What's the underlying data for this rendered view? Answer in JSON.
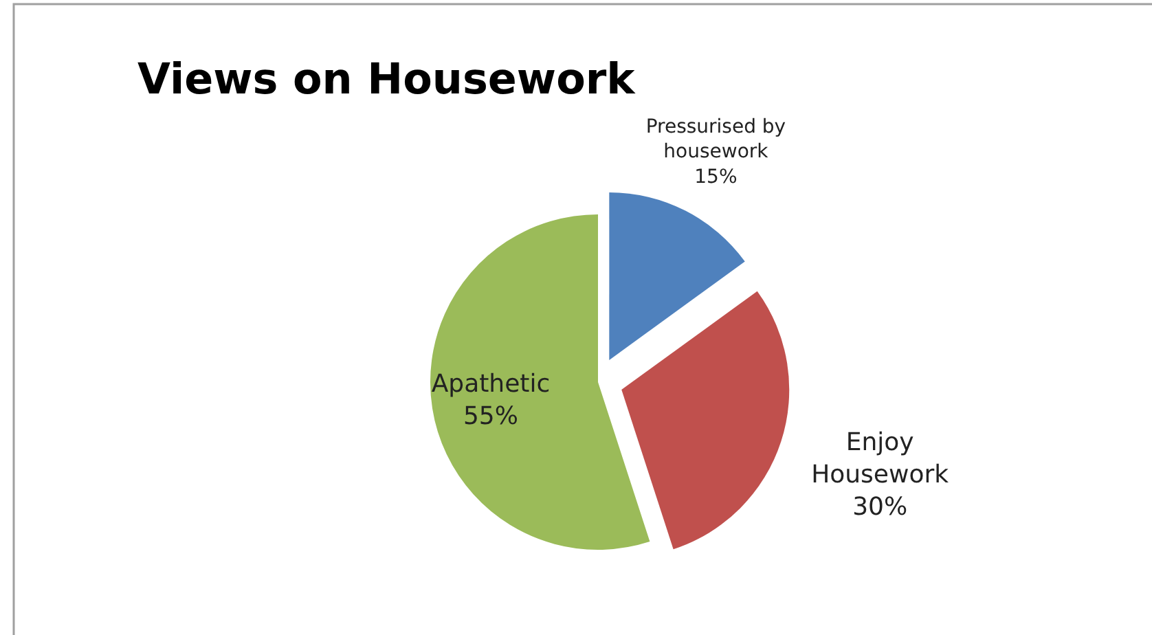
{
  "chart_data": {
    "type": "pie",
    "title": "Views on Housework",
    "categories": [
      "Pressurised by housework",
      "Enjoy Housework",
      "Apathetic"
    ],
    "values": [
      15,
      30,
      55
    ],
    "colors": [
      "#4f81bd",
      "#c0504d",
      "#9bbb59"
    ],
    "value_labels": [
      "15%",
      "30%",
      "55%"
    ],
    "data_labels": true
  }
}
